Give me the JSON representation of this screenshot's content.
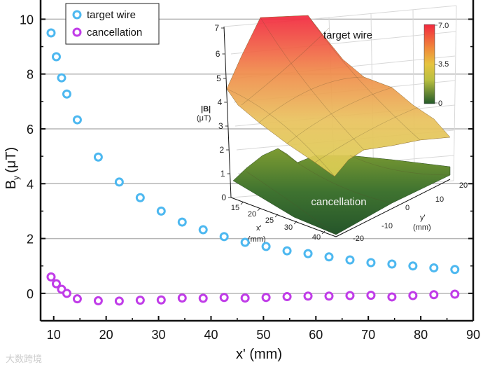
{
  "chart_data": {
    "type": "scatter",
    "title": "",
    "xlabel": "x' (mm)",
    "ylabel": "B",
    "ylabel_sub": "y",
    "ylabel_unit": "(μT)",
    "xlim": [
      7.5,
      90
    ],
    "ylim": [
      -1,
      10.7
    ],
    "xticks": [
      "10",
      "20",
      "30",
      "40",
      "50",
      "60",
      "70",
      "80",
      "90"
    ],
    "xtick_values": [
      10,
      20,
      30,
      40,
      50,
      60,
      70,
      80,
      90
    ],
    "yticks": [
      "0",
      "2",
      "4",
      "6",
      "8",
      "10"
    ],
    "ytick_values": [
      0,
      2,
      4,
      6,
      8,
      10
    ],
    "grid": "horizontal",
    "legend_position": "top-left",
    "x": [
      9.5,
      10.5,
      11.5,
      12.5,
      14.5,
      18.5,
      22.5,
      26.5,
      30.5,
      34.5,
      38.5,
      42.5,
      46.5,
      50.5,
      54.5,
      58.5,
      62.5,
      66.5,
      70.5,
      74.5,
      78.5,
      82.5,
      86.5
    ],
    "series": [
      {
        "name": "target wire",
        "color": "#4db8f0",
        "values": [
          9.5,
          8.63,
          7.86,
          7.27,
          6.33,
          4.97,
          4.06,
          3.49,
          3.0,
          2.6,
          2.32,
          2.07,
          1.86,
          1.71,
          1.55,
          1.45,
          1.33,
          1.22,
          1.12,
          1.07,
          1.0,
          0.93,
          0.87
        ]
      },
      {
        "name": "cancellation",
        "color": "#c03ce8",
        "values": [
          0.6,
          0.35,
          0.15,
          0.0,
          -0.2,
          -0.27,
          -0.28,
          -0.25,
          -0.24,
          -0.17,
          -0.18,
          -0.15,
          -0.17,
          -0.15,
          -0.12,
          -0.1,
          -0.1,
          -0.08,
          -0.07,
          -0.13,
          -0.08,
          -0.05,
          -0.03
        ]
      }
    ],
    "inset": {
      "type": "surface3d",
      "z_label": "|B|",
      "z_unit": "(μT)",
      "z_ticks": [
        "0",
        "1",
        "2",
        "3",
        "4",
        "5",
        "6",
        "7"
      ],
      "x_label": "x'",
      "x_unit": "(mm)",
      "x_ticks": [
        "15",
        "20",
        "25",
        "30",
        "40"
      ],
      "y_label": "y'",
      "y_unit": "(mm)",
      "y_ticks": [
        "-20",
        "-10",
        "0",
        "10",
        "20"
      ],
      "colorbar_ticks": [
        "7.0",
        "3.5",
        "0"
      ],
      "surface_labels": [
        "target wire",
        "cancellation"
      ]
    }
  },
  "watermark": "大数跨境"
}
